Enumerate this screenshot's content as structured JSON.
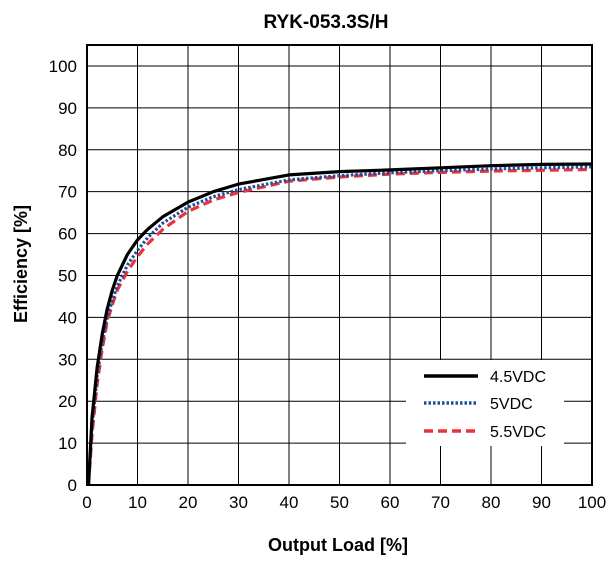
{
  "chart_data": {
    "type": "line",
    "title": "RYK-053.3S/H",
    "xlabel": "Output Load [%]",
    "ylabel": "Efficiency [%]",
    "xlim": [
      0,
      100
    ],
    "ylim": [
      0,
      105
    ],
    "xticks": [
      0,
      10,
      20,
      30,
      40,
      50,
      60,
      70,
      80,
      90,
      100
    ],
    "yticks": [
      0,
      10,
      20,
      30,
      40,
      50,
      60,
      70,
      80,
      90,
      100
    ],
    "grid": true,
    "legend_position": "bottom-right",
    "series": [
      {
        "name": "4.5VDC",
        "color": "#000000",
        "style": "solid",
        "x": [
          0.3,
          1,
          2,
          3,
          4,
          5,
          6,
          8,
          10,
          12,
          15,
          20,
          25,
          30,
          40,
          50,
          60,
          70,
          80,
          90,
          100
        ],
        "y": [
          0,
          16,
          28,
          36,
          42,
          46.5,
          50,
          55,
          58.5,
          61,
          64,
          67.5,
          70,
          71.8,
          74,
          74.8,
          75.2,
          75.7,
          76.2,
          76.5,
          76.6
        ]
      },
      {
        "name": "5VDC",
        "color": "#1f4e9c",
        "style": "dotted",
        "x": [
          0.3,
          1,
          2,
          3,
          4,
          5,
          6,
          8,
          10,
          12,
          15,
          20,
          25,
          30,
          40,
          50,
          60,
          70,
          80,
          90,
          100
        ],
        "y": [
          0,
          14,
          26,
          34,
          40,
          44,
          47.5,
          52.5,
          56,
          59,
          62.5,
          66.3,
          68.8,
          70.5,
          72.8,
          73.8,
          74.5,
          75,
          75.4,
          75.7,
          75.9
        ]
      },
      {
        "name": "5.5VDC",
        "color": "#e8333a",
        "style": "dashed",
        "x": [
          0.3,
          1,
          2,
          3,
          4,
          5,
          6,
          8,
          10,
          12,
          15,
          20,
          25,
          30,
          40,
          50,
          60,
          70,
          80,
          90,
          100
        ],
        "y": [
          0,
          12,
          24,
          32.5,
          39,
          43,
          46.5,
          51,
          54.5,
          57.5,
          61,
          65.3,
          68,
          69.8,
          72.5,
          73.5,
          74.2,
          74.6,
          74.9,
          75.1,
          75.3
        ]
      }
    ]
  }
}
